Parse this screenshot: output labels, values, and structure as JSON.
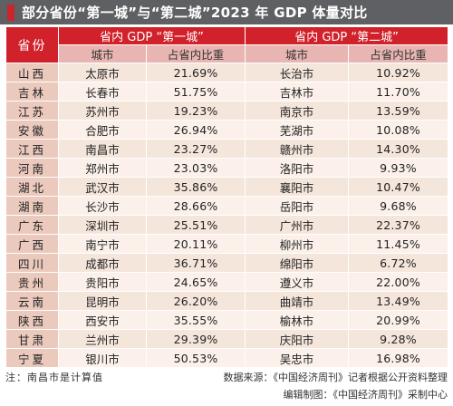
{
  "title": "部分省份“第一城”与“第二城”2023 年 GDP 体量对比",
  "header": {
    "province": "省份",
    "first_group": "省内 GDP “第一城”",
    "second_group": "省内 GDP “第二城”",
    "city": "城市",
    "share": "占省内比重"
  },
  "rows": [
    {
      "province": "山西",
      "first_city": "太原市",
      "first_share": "21.69%",
      "second_city": "长治市",
      "second_share": "10.92%"
    },
    {
      "province": "吉林",
      "first_city": "长春市",
      "first_share": "51.75%",
      "second_city": "吉林市",
      "second_share": "11.70%"
    },
    {
      "province": "江苏",
      "first_city": "苏州市",
      "first_share": "19.23%",
      "second_city": "南京市",
      "second_share": "13.59%"
    },
    {
      "province": "安徽",
      "first_city": "合肥市",
      "first_share": "26.94%",
      "second_city": "芜湖市",
      "second_share": "10.08%"
    },
    {
      "province": "江西",
      "first_city": "南昌市",
      "first_share": "23.27%",
      "second_city": "赣州市",
      "second_share": "14.30%"
    },
    {
      "province": "河南",
      "first_city": "郑州市",
      "first_share": "23.03%",
      "second_city": "洛阳市",
      "second_share": "9.93%"
    },
    {
      "province": "湖北",
      "first_city": "武汉市",
      "first_share": "35.86%",
      "second_city": "襄阳市",
      "second_share": "10.47%"
    },
    {
      "province": "湖南",
      "first_city": "长沙市",
      "first_share": "28.66%",
      "second_city": "岳阳市",
      "second_share": "9.68%"
    },
    {
      "province": "广东",
      "first_city": "深圳市",
      "first_share": "25.51%",
      "second_city": "广州市",
      "second_share": "22.37%"
    },
    {
      "province": "广西",
      "first_city": "南宁市",
      "first_share": "20.11%",
      "second_city": "柳州市",
      "second_share": "11.45%"
    },
    {
      "province": "四川",
      "first_city": "成都市",
      "first_share": "36.71%",
      "second_city": "绵阳市",
      "second_share": "6.72%"
    },
    {
      "province": "贵州",
      "first_city": "贵阳市",
      "first_share": "24.65%",
      "second_city": "遵义市",
      "second_share": "22.00%"
    },
    {
      "province": "云南",
      "first_city": "昆明市",
      "first_share": "26.20%",
      "second_city": "曲靖市",
      "second_share": "13.49%"
    },
    {
      "province": "陕西",
      "first_city": "西安市",
      "first_share": "35.55%",
      "second_city": "榆林市",
      "second_share": "20.99%"
    },
    {
      "province": "甘肃",
      "first_city": "兰州市",
      "first_share": "29.39%",
      "second_city": "庆阳市",
      "second_share": "9.28%"
    },
    {
      "province": "宁夏",
      "first_city": "银川市",
      "first_share": "50.53%",
      "second_city": "吴忠市",
      "second_share": "16.98%"
    }
  ],
  "footer": {
    "note": "注：南昌市是计算值",
    "source": "数据来源：《中国经济周刊》记者根据公开资料整理",
    "editor": "编辑制图：《中国经济周刊》采制中心"
  },
  "colors": {
    "title_bg": "#5f6063",
    "accent_red": "#d1222b",
    "subheader_pink": "#e8b5b2",
    "province_cell": "#ebc9bd",
    "row_light": "#f5e6dc"
  }
}
